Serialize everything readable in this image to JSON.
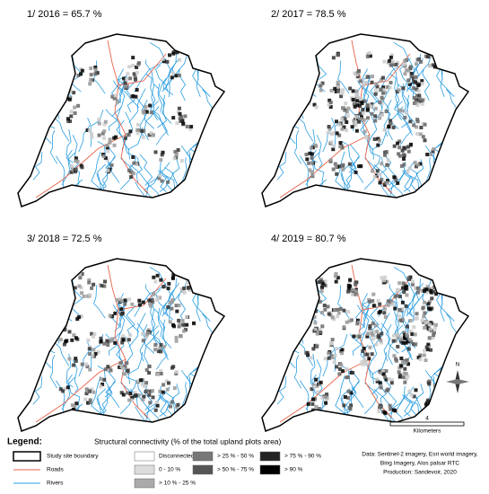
{
  "panels": [
    {
      "title": "1/ 2016 = 65.7 %"
    },
    {
      "title": "2/ 2017 = 78.5 %"
    },
    {
      "title": "3/ 2018 = 72.5 %"
    },
    {
      "title": "4/ 2019 = 80.7 %"
    }
  ],
  "legend": {
    "heading": "Legend:",
    "boundary": "Study site boundary",
    "roads": "Roads",
    "rivers": "Rivers",
    "connectivity_title": "Structural connectivity (% of the total upland plots area)",
    "classes": [
      "Disconnected",
      "0 - 10 %",
      "> 10 % - 25 %",
      "> 25 % - 50 %",
      "> 50 % - 75 %",
      "> 75 % - 90 %",
      "> 90 %"
    ]
  },
  "credits": [
    "Data: Sentinel-2 imagery, Esri world imagery,",
    "Bing Imagery, Alos palsar RTC",
    "Production: Sandevoir, 2020"
  ],
  "scale": {
    "value": "4",
    "unit": "Kilometers"
  },
  "north": "N"
}
